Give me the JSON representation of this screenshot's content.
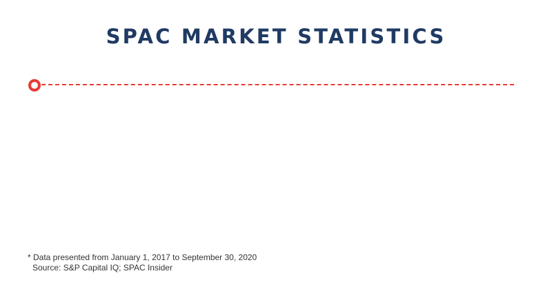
{
  "title": "SPAC MARKET STATISTICS",
  "footnote": {
    "data_range": "* Data presented from January 1, 2017 to September 30, 2020",
    "source": "Source: S&P Capital IQ; SPAC Insider"
  },
  "colors": {
    "title": "#1f3a63",
    "accent": "#e63b32",
    "footnote": "#333333"
  }
}
